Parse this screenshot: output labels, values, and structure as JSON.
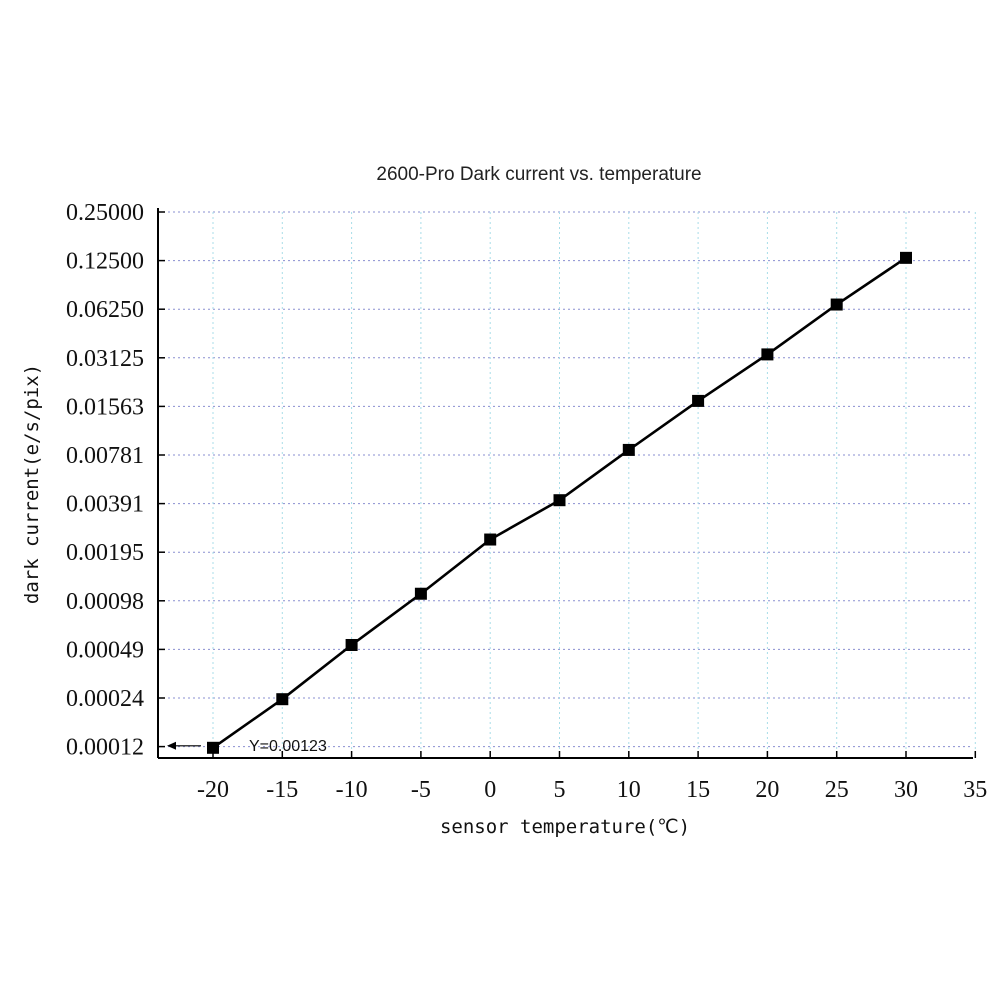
{
  "chart_data": {
    "type": "line",
    "title": "2600-Pro Dark current vs. temperature",
    "xlabel": "sensor temperature(℃)",
    "ylabel": "dark current(e/s/pix)",
    "x_ticks": [
      "-20",
      "-15",
      "-10",
      "-5",
      "0",
      "5",
      "10",
      "15",
      "20",
      "25",
      "30",
      "35"
    ],
    "y_ticks": [
      "0.25000",
      "0.12500",
      "0.06250",
      "0.03125",
      "0.01563",
      "0.00781",
      "0.00391",
      "0.00195",
      "0.00098",
      "0.00049",
      "0.00024",
      "0.00012"
    ],
    "y_scale": "log2",
    "xlim": [
      -24,
      35
    ],
    "ylim": [
      0.0001,
      0.25
    ],
    "grid": true,
    "series": [
      {
        "x": [
          -20,
          -15,
          -10,
          -5,
          0,
          5,
          10,
          15,
          20,
          25,
          30
        ],
        "y": [
          0.00123,
          0.00024,
          0.00052,
          0.00108,
          0.00234,
          0.0041,
          0.0084,
          0.0169,
          0.0328,
          0.0668,
          0.13
        ],
        "color": "#000000",
        "marker": "square"
      }
    ],
    "annotations": [
      {
        "text": "Y=0.00123",
        "x": -20,
        "y": 0.00012,
        "arrow": "left"
      }
    ]
  }
}
